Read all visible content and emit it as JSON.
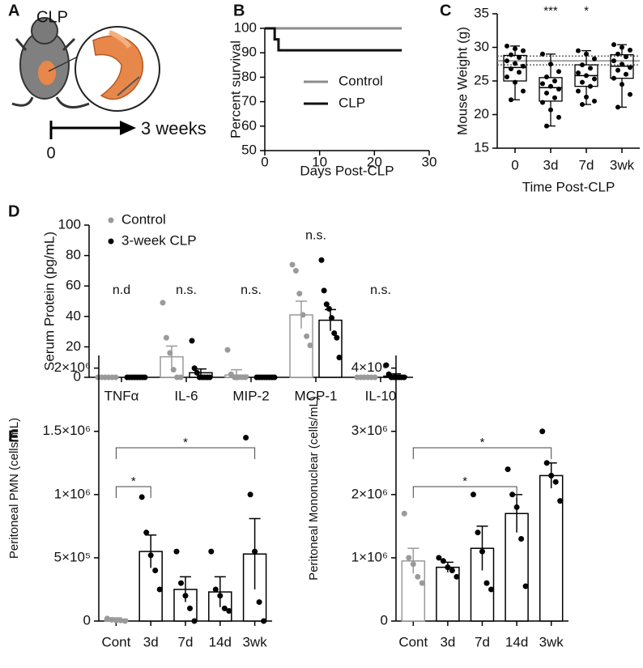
{
  "panel_labels": [
    "A",
    "B",
    "C",
    "D",
    "E"
  ],
  "illustration": {
    "label": "CLP",
    "timeline_start": 0,
    "timeline_end": "3 weeks"
  },
  "chart_data": [
    {
      "type": "line",
      "x_label": "Days Post-CLP",
      "y_label": "Percent survival",
      "xlim": [
        0,
        30
      ],
      "xticks": [
        0,
        10,
        20,
        30
      ],
      "ylim": [
        50,
        100
      ],
      "yticks": [
        50,
        60,
        70,
        80,
        90,
        100
      ],
      "legend": "center right",
      "series": [
        {
          "name": "Control",
          "color": "#8c8c8c",
          "x": [
            0,
            25
          ],
          "values": [
            100,
            100
          ]
        },
        {
          "name": "CLP",
          "color": "#111111",
          "x": [
            0,
            1.8,
            1.8,
            2.5,
            2.5,
            25
          ],
          "values": [
            100,
            100,
            95.5,
            95.5,
            91,
            91
          ]
        }
      ]
    },
    {
      "type": "box",
      "x_label": "Time Post-CLP",
      "y_label": "Mouse Weight (g)",
      "categories": [
        "0",
        "3d",
        "7d",
        "3wk"
      ],
      "ylim": [
        15,
        35
      ],
      "yticks": [
        15,
        20,
        25,
        30,
        35
      ],
      "reference_lines": [
        {
          "value": 28,
          "style": "solid"
        },
        {
          "value": 27.4,
          "style": "dotted"
        },
        {
          "value": 28.7,
          "style": "dotted"
        }
      ],
      "boxes": [
        {
          "min": 22.2,
          "q1": 25,
          "median": 27,
          "q3": 28.8,
          "max": 30.2
        },
        {
          "min": 18.3,
          "q1": 22,
          "median": 24,
          "q3": 25.5,
          "max": 29
        },
        {
          "min": 21.5,
          "q1": 24.2,
          "median": 25.8,
          "q3": 27.4,
          "max": 29.5
        },
        {
          "min": 21.1,
          "q1": 25.4,
          "median": 27.2,
          "q3": 28.9,
          "max": 30.4
        }
      ],
      "points": [
        [
          30.2,
          29.8,
          29.5,
          28.9,
          28.5,
          28.0,
          27.6,
          27.2,
          26.8,
          26.3,
          25.6,
          24.8,
          23.5,
          22.2
        ],
        [
          29.0,
          27.5,
          26.4,
          25.6,
          25.0,
          24.6,
          24.2,
          23.8,
          23.2,
          22.5,
          21.8,
          20.7,
          19.6,
          18.3
        ],
        [
          29.5,
          29.0,
          28.3,
          27.4,
          26.9,
          26.2,
          25.8,
          25.3,
          24.8,
          24.2,
          23.5,
          22.6,
          22.0,
          21.5
        ],
        [
          30.4,
          30.0,
          29.6,
          29.0,
          28.6,
          28.0,
          27.5,
          27.0,
          26.6,
          26.0,
          25.4,
          24.5,
          23.0,
          21.1
        ]
      ],
      "annotations": [
        {
          "category": "3d",
          "text": "***"
        },
        {
          "category": "7d",
          "text": "*"
        }
      ]
    },
    {
      "type": "bar",
      "y_label": "Serum Protein (pg/mL)",
      "categories": [
        "TNFα",
        "IL-6",
        "MIP-2",
        "MCP-1",
        "IL-10"
      ],
      "ylim": [
        0,
        100
      ],
      "yticks": [
        0,
        20,
        40,
        60,
        80,
        100
      ],
      "legend": "upper left",
      "series": [
        {
          "name": "Control",
          "color": "#9a9a9a",
          "values": [
            0,
            13.5,
            1.5,
            41,
            0
          ],
          "errors": [
            0,
            7,
            3.5,
            9,
            0
          ],
          "points": [
            [
              0,
              0,
              0,
              0,
              0,
              0
            ],
            [
              49,
              26,
              16,
              5,
              0,
              0
            ],
            [
              18,
              2,
              0,
              0,
              0,
              0
            ],
            [
              74,
              70,
              55,
              41,
              27,
              21
            ],
            [
              0,
              0,
              0,
              0,
              0,
              0
            ]
          ]
        },
        {
          "name": "3-week CLP",
          "color": "#000000",
          "values": [
            0,
            3,
            0,
            37.5,
            0.8
          ],
          "errors": [
            0,
            2.5,
            0,
            7,
            1.5
          ],
          "points": [
            [
              0,
              0,
              0,
              0,
              0,
              0,
              0,
              0
            ],
            [
              24,
              6,
              3,
              0,
              0,
              0,
              0,
              0
            ],
            [
              0,
              0,
              0,
              0,
              0,
              0,
              0,
              0
            ],
            [
              77,
              57,
              48,
              45,
              39,
              29,
              26,
              13
            ],
            [
              8,
              2,
              0,
              0,
              0,
              0,
              0,
              0
            ]
          ]
        }
      ],
      "annotations": [
        {
          "category": "TNFα",
          "text": "n.d"
        },
        {
          "category": "IL-6",
          "text": "n.s."
        },
        {
          "category": "MIP-2",
          "text": "n.s."
        },
        {
          "category": "MCP-1",
          "text": "n.s."
        },
        {
          "category": "IL-10",
          "text": "n.s."
        }
      ]
    },
    {
      "type": "bar",
      "y_label": "Peritoneal PMN (cells/mL)",
      "categories": [
        "Cont",
        "3d",
        "7d",
        "14d",
        "3wk"
      ],
      "ylim": [
        0,
        2100000
      ],
      "yticks": [
        0,
        {
          "value": 500000,
          "label": "5×10⁵"
        },
        {
          "value": 1000000,
          "label": "1×10⁶"
        },
        {
          "value": 1500000,
          "label": "1.5×10⁶"
        },
        {
          "value": 2000000,
          "label": "2×10⁶"
        }
      ],
      "series": [
        {
          "colors": [
            "#9a9a9a",
            "#000000",
            "#000000",
            "#000000",
            "#000000"
          ],
          "values": [
            15000,
            550000,
            250000,
            230000,
            530000
          ],
          "errors": [
            10000,
            130000,
            100000,
            120000,
            280000
          ],
          "points": [
            [
              20000,
              10000,
              5000,
              5000,
              0
            ],
            [
              980000,
              700000,
              520000,
              400000,
              250000
            ],
            [
              550000,
              300000,
              200000,
              100000,
              0
            ],
            [
              550000,
              250000,
              200000,
              100000,
              80000
            ],
            [
              1450000,
              1000000,
              550000,
              150000,
              0
            ]
          ]
        }
      ],
      "comparisons": [
        {
          "from": "Cont",
          "to": "3d",
          "label": "*"
        },
        {
          "from": "Cont",
          "to": "3wk",
          "label": "*"
        }
      ]
    },
    {
      "type": "bar",
      "y_label": "Peritoneal Mononuclear (cells/mL)",
      "categories": [
        "Cont",
        "3d",
        "7d",
        "14d",
        "3wk"
      ],
      "ylim": [
        0,
        4200000
      ],
      "yticks": [
        0,
        {
          "value": 1000000,
          "label": "1×10⁶"
        },
        {
          "value": 2000000,
          "label": "2×10⁶"
        },
        {
          "value": 3000000,
          "label": "3×10⁶"
        },
        {
          "value": 4000000,
          "label": "4×10⁶"
        }
      ],
      "series": [
        {
          "colors": [
            "#9a9a9a",
            "#000000",
            "#000000",
            "#000000",
            "#000000"
          ],
          "values": [
            950000,
            850000,
            1150000,
            1700000,
            2300000
          ],
          "errors": [
            200000,
            80000,
            350000,
            300000,
            200000
          ],
          "points": [
            [
              1700000,
              1000000,
              900000,
              700000,
              600000
            ],
            [
              1000000,
              950000,
              850000,
              800000,
              700000
            ],
            [
              2000000,
              1400000,
              1100000,
              600000,
              500000
            ],
            [
              2400000,
              2000000,
              1800000,
              1300000,
              550000
            ],
            [
              3000000,
              2500000,
              2300000,
              2200000,
              1900000
            ]
          ]
        }
      ],
      "comparisons": [
        {
          "from": "Cont",
          "to": "14d",
          "label": "*"
        },
        {
          "from": "Cont",
          "to": "3wk",
          "label": "*"
        }
      ]
    }
  ]
}
